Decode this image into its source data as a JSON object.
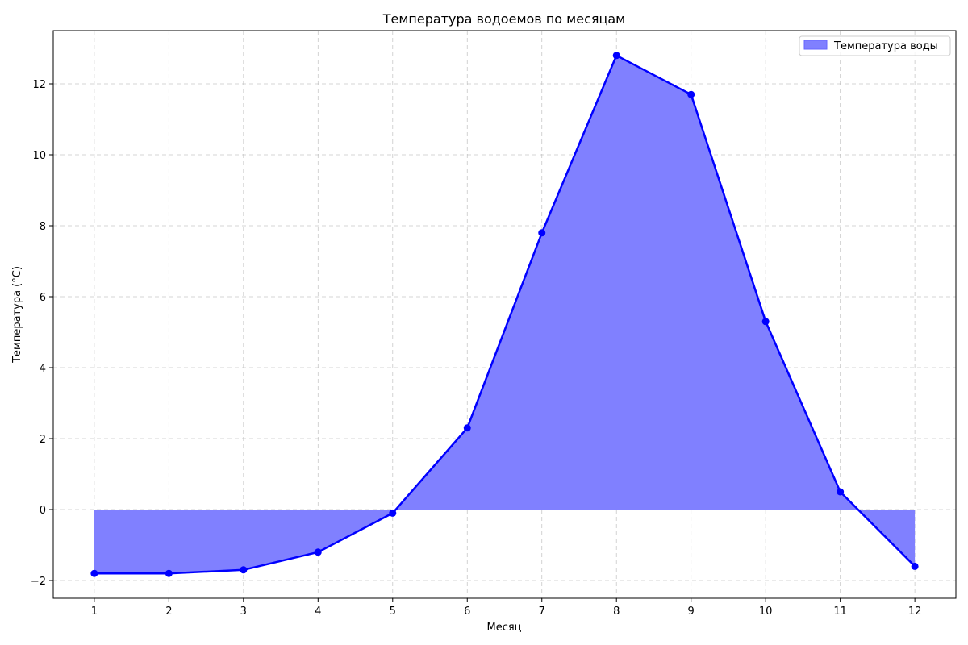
{
  "chart_data": {
    "type": "area",
    "title": "Температура водоемов по месяцам",
    "xlabel": "Месяц",
    "ylabel": "Температура (°C)",
    "x": [
      1,
      2,
      3,
      4,
      5,
      6,
      7,
      8,
      9,
      10,
      11,
      12
    ],
    "xlim": [
      0.45,
      12.55
    ],
    "ylim": [
      -2.5,
      13.5
    ],
    "x_ticks": [
      1,
      2,
      3,
      4,
      5,
      6,
      7,
      8,
      9,
      10,
      11,
      12
    ],
    "y_ticks": [
      -2,
      0,
      2,
      4,
      6,
      8,
      10,
      12
    ],
    "y_tick_labels": [
      "−2",
      "0",
      "2",
      "4",
      "6",
      "8",
      "10",
      "12"
    ],
    "grid": true,
    "legend_position": "top-right",
    "series": [
      {
        "name": "Температура воды",
        "values": [
          -1.8,
          -1.8,
          -1.7,
          -1.2,
          -0.1,
          2.3,
          7.8,
          12.8,
          11.7,
          5.3,
          0.5,
          -1.6
        ],
        "line_color": "#0000ff",
        "fill_color": "#8080ff",
        "markers": true
      }
    ]
  }
}
